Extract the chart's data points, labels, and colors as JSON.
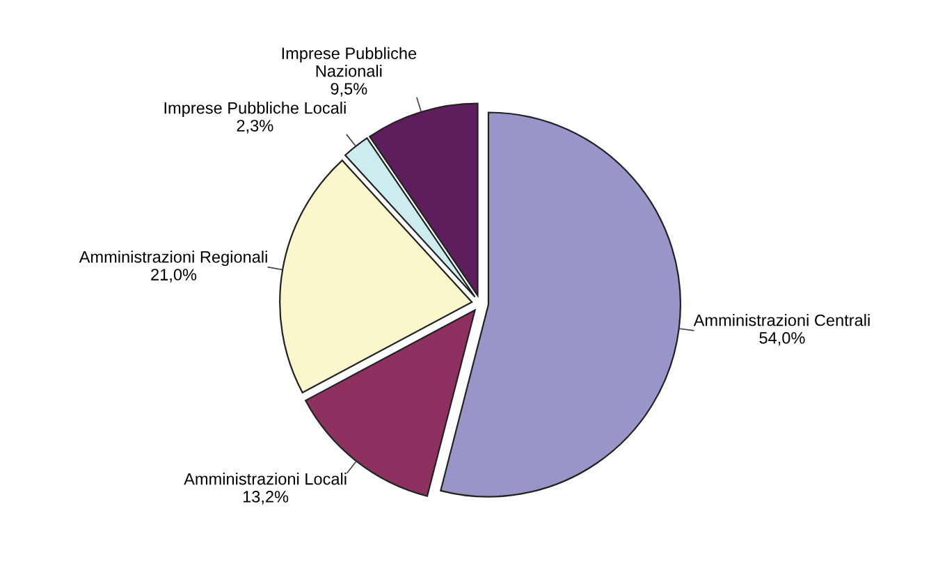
{
  "chart_data": {
    "type": "pie",
    "categories": [
      "Amministrazioni Centrali",
      "Amministrazioni Locali",
      "Amministrazioni Regionali",
      "Imprese Pubbliche Locali",
      "Imprese Pubbliche\nNazionali"
    ],
    "values": [
      54.0,
      13.2,
      21.0,
      2.3,
      9.5
    ],
    "value_labels": [
      "54,0%",
      "13,2%",
      "21,0%",
      "2,3%",
      "9,5%"
    ],
    "colors": [
      "#9896c9",
      "#8f3160",
      "#fbf7cc",
      "#ccecf0",
      "#5e1e5e"
    ],
    "legend": false
  }
}
